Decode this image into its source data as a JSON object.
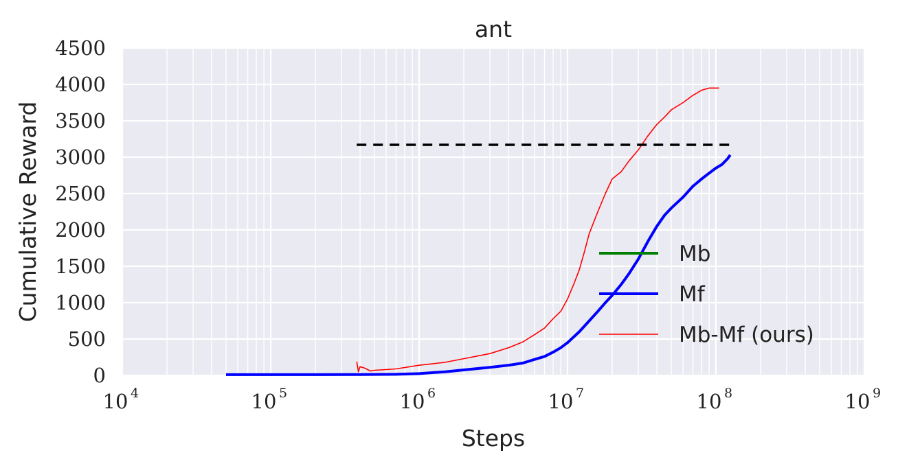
{
  "chart_data": {
    "type": "line",
    "title": "ant",
    "xlabel": "Steps",
    "ylabel": "Cumulative Reward",
    "x_scale": "log",
    "xlim": [
      10000,
      1000000000
    ],
    "ylim": [
      0,
      4500
    ],
    "x_ticks": [
      {
        "base": "10",
        "exp": "4"
      },
      {
        "base": "10",
        "exp": "5"
      },
      {
        "base": "10",
        "exp": "6"
      },
      {
        "base": "10",
        "exp": "7"
      },
      {
        "base": "10",
        "exp": "8"
      },
      {
        "base": "10",
        "exp": "9"
      }
    ],
    "y_ticks": [
      "0",
      "500",
      "1000",
      "1500",
      "2000",
      "2500",
      "3000",
      "3500",
      "4000",
      "4500"
    ],
    "grid": true,
    "background": "#eaeaf2",
    "legend_position": "lower-right",
    "series": [
      {
        "name": "Mb",
        "color": "#008000",
        "style": "solid",
        "x": [],
        "y": []
      },
      {
        "name": "Mf",
        "color": "#0000ff",
        "style": "solid",
        "x": [
          50000,
          100000,
          200000,
          400000,
          700000,
          1000000,
          1500000,
          2000000,
          3000000,
          4000000,
          5000000,
          6000000,
          7000000,
          8000000,
          9000000,
          10000000,
          12000000,
          14000000,
          16000000,
          18000000,
          20000000,
          23000000,
          26000000,
          30000000,
          35000000,
          40000000,
          45000000,
          50000000,
          60000000,
          70000000,
          80000000,
          90000000,
          100000000,
          110000000,
          120000000,
          125000000
        ],
        "y": [
          10,
          10,
          10,
          12,
          15,
          25,
          50,
          75,
          110,
          140,
          170,
          220,
          260,
          320,
          380,
          450,
          600,
          750,
          880,
          1000,
          1100,
          1250,
          1400,
          1600,
          1850,
          2050,
          2200,
          2300,
          2450,
          2600,
          2700,
          2780,
          2850,
          2900,
          2980,
          3030
        ]
      },
      {
        "name": "Mb-Mf (ours)",
        "color": "#ff0000",
        "style": "solid-thin",
        "x": [
          380000,
          390000,
          400000,
          430000,
          470000,
          500000,
          600000,
          700000,
          1000000,
          1500000,
          2000000,
          3000000,
          4000000,
          5000000,
          6000000,
          7000000,
          8000000,
          9000000,
          10000000,
          11000000,
          12000000,
          13000000,
          14000000,
          16000000,
          18000000,
          20000000,
          23000000,
          26000000,
          30000000,
          35000000,
          40000000,
          45000000,
          50000000,
          60000000,
          70000000,
          80000000,
          90000000,
          100000000,
          105000000
        ],
        "y": [
          190,
          50,
          120,
          100,
          60,
          70,
          80,
          90,
          140,
          180,
          230,
          300,
          380,
          460,
          560,
          650,
          780,
          880,
          1050,
          1250,
          1450,
          1700,
          1950,
          2250,
          2500,
          2700,
          2800,
          2950,
          3100,
          3300,
          3450,
          3550,
          3650,
          3750,
          3850,
          3920,
          3950,
          3950,
          3950
        ]
      },
      {
        "name": "",
        "color": "#000000",
        "style": "dashed",
        "x": [
          380000,
          125000000
        ],
        "y": [
          3170,
          3170
        ]
      }
    ]
  }
}
